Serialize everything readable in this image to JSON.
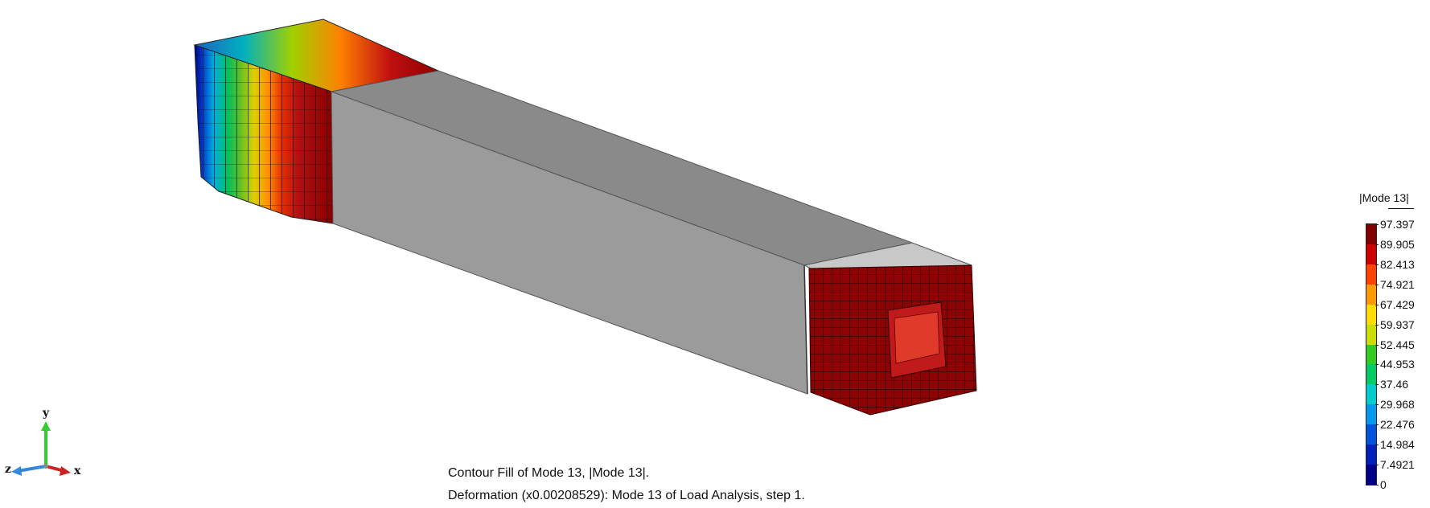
{
  "legend": {
    "title": "|Mode 13|",
    "ticks": [
      "97.397",
      "89.905",
      "82.413",
      "74.921",
      "67.429",
      "59.937",
      "52.445",
      "44.953",
      "37.46",
      "29.968",
      "22.476",
      "14.984",
      "7.4921",
      "0"
    ],
    "colors": [
      "#800000",
      "#cc0000",
      "#ff4400",
      "#ff9900",
      "#ffdd00",
      "#ccdd00",
      "#33cc22",
      "#00cc66",
      "#00cccc",
      "#0099ee",
      "#0055dd",
      "#0022bb",
      "#000088"
    ]
  },
  "caption": {
    "line1": "Contour Fill of Mode 13, |Mode 13|.",
    "line2": "Deformation (x0.00208529): Mode 13 of Load Analysis, step 1."
  },
  "triad": {
    "y": "y",
    "z": "z",
    "x": "x"
  }
}
